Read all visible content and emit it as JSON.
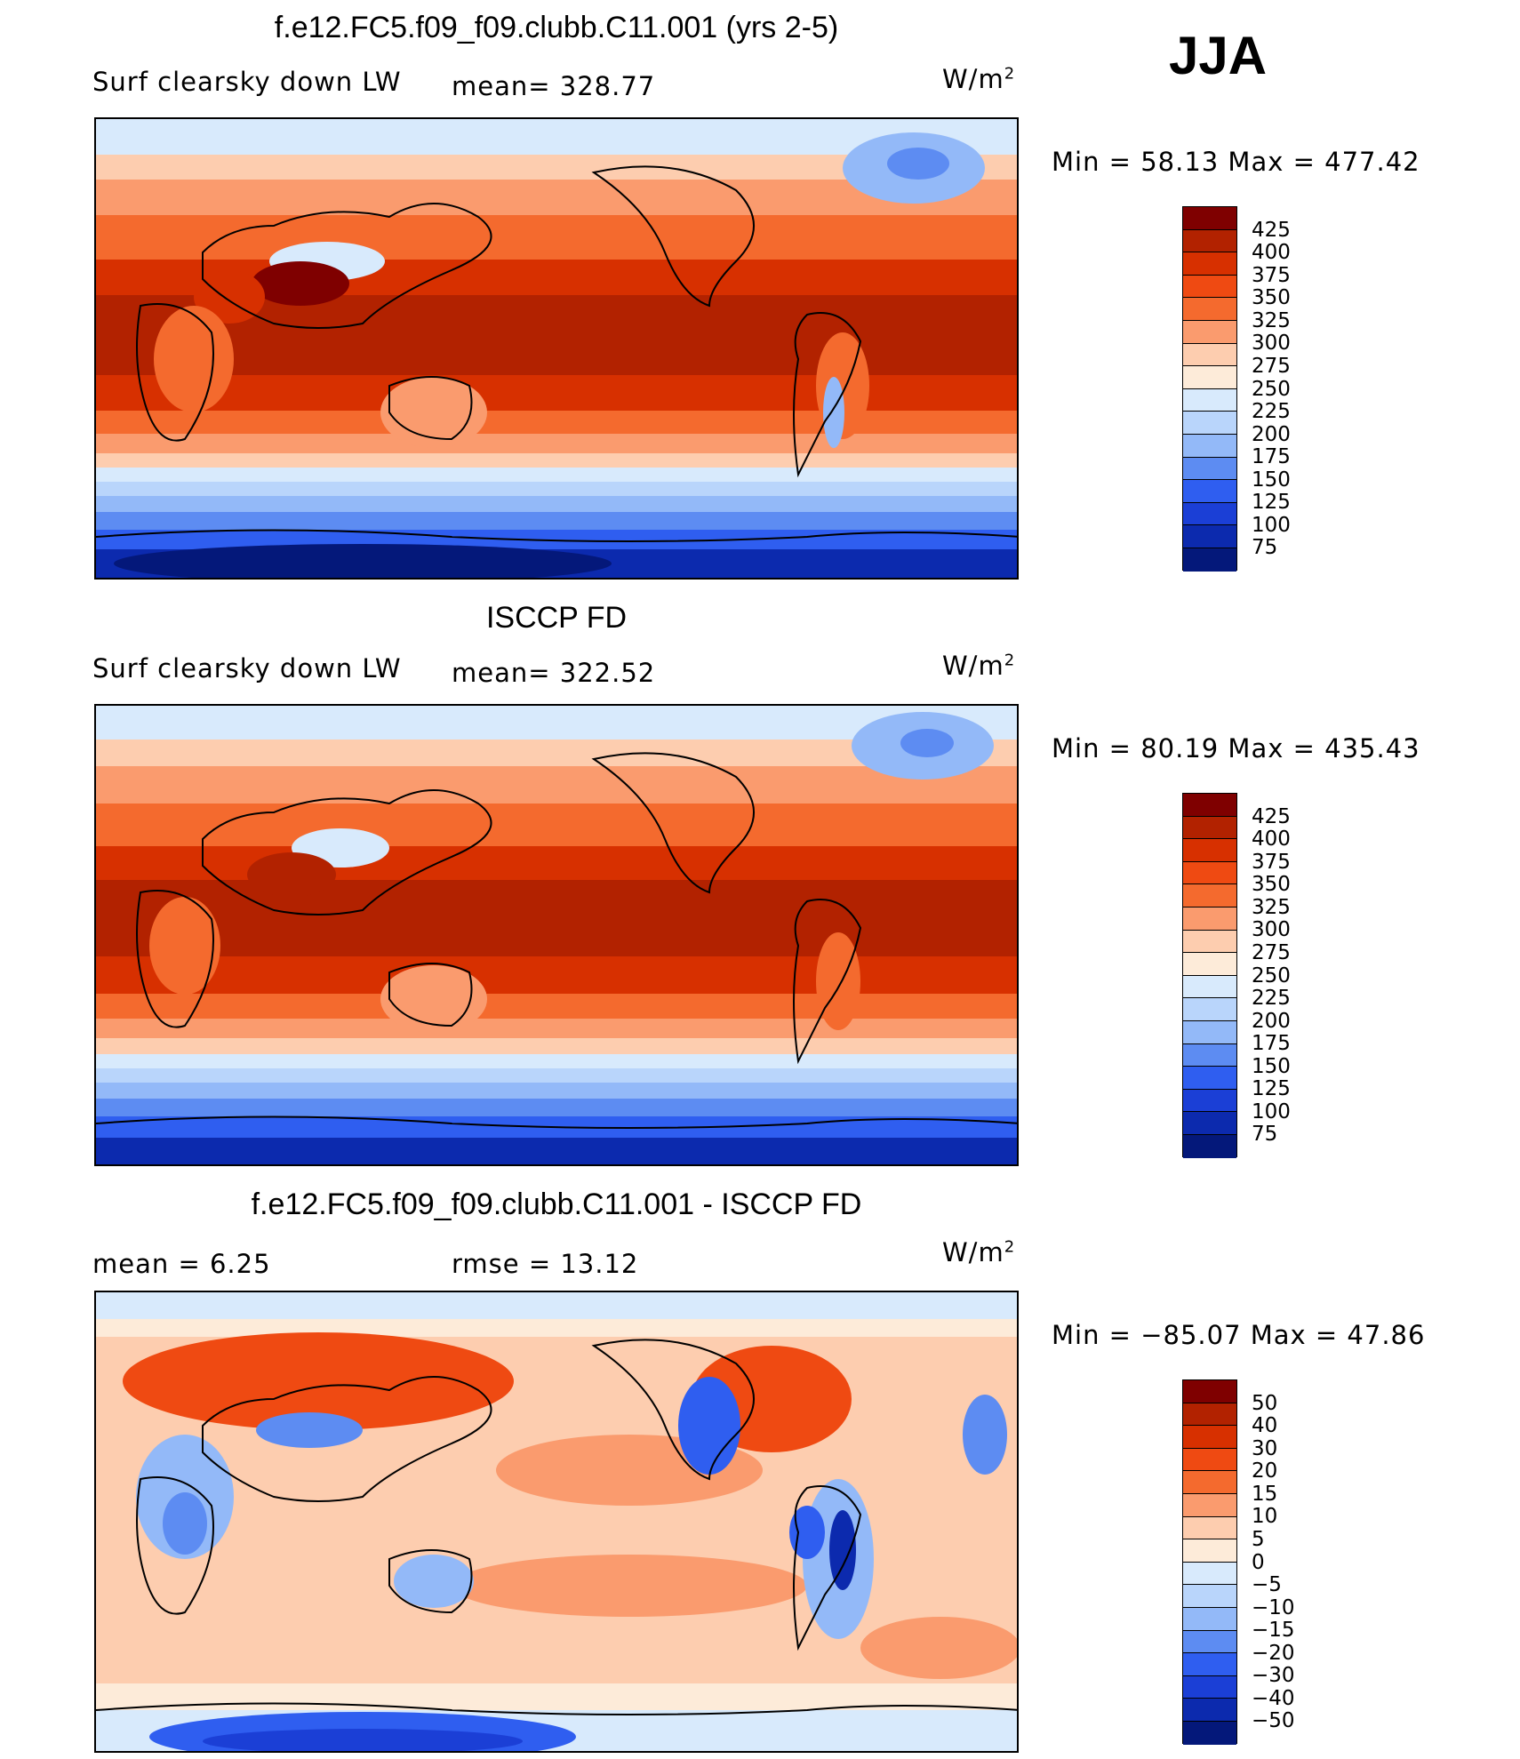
{
  "season": "JJA",
  "units_base": "W/m",
  "units_exp": "2",
  "panels": [
    {
      "title": "f.e12.FC5.f09_f09.clubb.C11.001 (yrs 2-5)",
      "left_label": "Surf  clearsky  down  LW",
      "stat": "mean=  328.77",
      "minmax": "Min  =    58.13  Max  =  477.42",
      "colorbar_labels": [
        "425",
        "400",
        "375",
        "350",
        "325",
        "300",
        "275",
        "250",
        "225",
        "200",
        "175",
        "150",
        "125",
        "100",
        "75"
      ]
    },
    {
      "title": "ISCCP FD",
      "left_label": "Surf  clearsky  down  LW",
      "stat": "mean=  322.52",
      "minmax": "Min  =    80.19  Max  =  435.43",
      "colorbar_labels": [
        "425",
        "400",
        "375",
        "350",
        "325",
        "300",
        "275",
        "250",
        "225",
        "200",
        "175",
        "150",
        "125",
        "100",
        "75"
      ]
    },
    {
      "title": "f.e12.FC5.f09_f09.clubb.C11.001 - ISCCP FD",
      "left_label": "mean  =      6.25",
      "stat": "rmse  =     13.12",
      "minmax": "Min  =  −85.07  Max  =     47.86",
      "colorbar_labels": [
        "50",
        "40",
        "30",
        "20",
        "15",
        "10",
        "5",
        "0",
        "−5",
        "−10",
        "−15",
        "−20",
        "−30",
        "−40",
        "−50"
      ]
    }
  ],
  "colors": {
    "abs_scale": [
      "#7f0000",
      "#b22200",
      "#d73000",
      "#ef4a12",
      "#f46a2e",
      "#fa9b6e",
      "#fdcdaf",
      "#fdebd9",
      "#d8eafc",
      "#b9d5fb",
      "#93b9f8",
      "#5d8cf2",
      "#2f5ef0",
      "#1b3fd6",
      "#0c2aae",
      "#04187a"
    ],
    "diff_scale": [
      "#7f0000",
      "#b22200",
      "#d73000",
      "#ef4a12",
      "#f46a2e",
      "#fa9b6e",
      "#fdcdaf",
      "#fdebd9",
      "#d8eafc",
      "#b9d5fb",
      "#93b9f8",
      "#5d8cf2",
      "#2f5ef0",
      "#1b3fd6",
      "#0c2aae",
      "#04187a"
    ]
  }
}
